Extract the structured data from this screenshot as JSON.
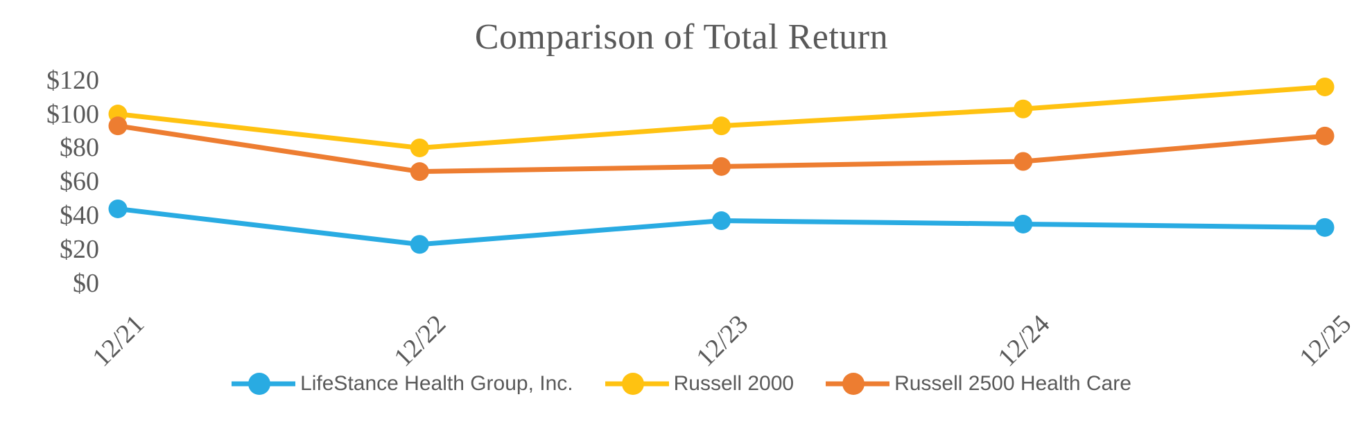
{
  "title": "Comparison of Total Return",
  "chart_data": {
    "type": "line",
    "title": "Comparison of Total Return",
    "x": [
      "12/21",
      "12/22",
      "12/23",
      "12/24",
      "12/25"
    ],
    "series": [
      {
        "name": "LifeStance Health Group, Inc.",
        "color": "#29ABE2",
        "values": [
          44,
          23,
          37,
          35,
          33
        ]
      },
      {
        "name": "Russell 2000",
        "color": "#FFC211",
        "values": [
          100,
          80,
          93,
          103,
          116
        ]
      },
      {
        "name": "Russell 2500 Health Care",
        "color": "#ED7D31",
        "values": [
          93,
          66,
          69,
          72,
          87
        ]
      }
    ],
    "y_ticks": [
      0,
      20,
      40,
      60,
      80,
      100,
      120
    ],
    "y_tick_labels": [
      "$0",
      "$20",
      "$40",
      "$60",
      "$80",
      "$100",
      "$120"
    ],
    "ylim": [
      0,
      120
    ],
    "xlabel": "",
    "ylabel": "",
    "grid": false,
    "legend_position": "bottom",
    "text_color": "#595959"
  }
}
